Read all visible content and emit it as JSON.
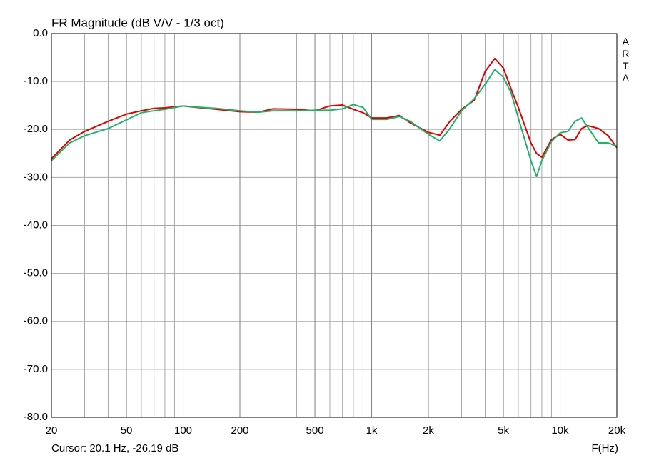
{
  "chart_data": {
    "type": "line",
    "title": "FR Magnitude (dB V/V - 1/3 oct)",
    "side_label": "ARTA",
    "cursor_text": "Cursor: 20.1 Hz, -26.19 dB",
    "x_label": "F(Hz)",
    "xscale": "log",
    "grid": true,
    "xlim": [
      20,
      20000
    ],
    "xticks": [
      20,
      50,
      100,
      200,
      500,
      {
        "value": 1000,
        "label": "1k"
      },
      {
        "value": 2000,
        "label": "2k"
      },
      {
        "value": 5000,
        "label": "5k"
      },
      {
        "value": 10000,
        "label": "10k"
      },
      {
        "value": 20000,
        "label": "20k"
      }
    ],
    "xminorticks": [
      30,
      40,
      60,
      70,
      80,
      90,
      300,
      400,
      600,
      700,
      800,
      900,
      3000,
      4000,
      6000,
      7000,
      8000,
      9000
    ],
    "ylim": [
      -80,
      0
    ],
    "yticks": [
      {
        "value": 0,
        "label": "0.0"
      },
      {
        "value": -10,
        "label": "-10.0"
      },
      {
        "value": -20,
        "label": "-20.0"
      },
      {
        "value": -30,
        "label": "-30.0"
      },
      {
        "value": -40,
        "label": "-40.0"
      },
      {
        "value": -50,
        "label": "-50.0"
      },
      {
        "value": -60,
        "label": "-60.0"
      },
      {
        "value": -70,
        "label": "-70.0"
      },
      {
        "value": -80,
        "label": "-80.0"
      }
    ],
    "x": [
      20,
      25,
      30,
      40,
      50,
      60,
      70,
      80,
      100,
      125,
      150,
      200,
      250,
      300,
      400,
      500,
      600,
      700,
      800,
      900,
      1000,
      1200,
      1400,
      1600,
      2000,
      2300,
      2600,
      3000,
      3500,
      4000,
      4500,
      5000,
      5500,
      6000,
      7000,
      7500,
      8000,
      9000,
      10000,
      11000,
      12000,
      13000,
      14000,
      16000,
      18000,
      20000
    ],
    "series": [
      {
        "color": "#e00000",
        "values": [
          -26.1,
          -22.2,
          -20.4,
          -18.3,
          -16.8,
          -16.1,
          -15.6,
          -15.5,
          -15.1,
          -15.5,
          -15.8,
          -16.3,
          -16.4,
          -15.7,
          -15.8,
          -16.1,
          -15.1,
          -14.9,
          -15.8,
          -16.5,
          -17.6,
          -17.6,
          -17.1,
          -18.6,
          -20.6,
          -21.2,
          -18.3,
          -15.8,
          -13.9,
          -7.9,
          -5.2,
          -7.2,
          -11.6,
          -15.4,
          -22.8,
          -25.0,
          -25.8,
          -22.1,
          -21.0,
          -22.2,
          -22.1,
          -19.8,
          -19.2,
          -19.8,
          -21.3,
          -23.8
        ]
      },
      {
        "color": "#1db36b",
        "values": [
          -26.5,
          -22.8,
          -21.3,
          -19.8,
          -18.0,
          -16.5,
          -16.1,
          -15.8,
          -15.1,
          -15.4,
          -15.6,
          -16.1,
          -16.4,
          -16.1,
          -16.1,
          -16.0,
          -16.0,
          -15.7,
          -14.8,
          -15.4,
          -17.9,
          -17.9,
          -17.3,
          -18.3,
          -21.0,
          -22.4,
          -19.8,
          -16.1,
          -13.6,
          -10.6,
          -7.5,
          -9.1,
          -12.4,
          -17.6,
          -26.5,
          -29.8,
          -26.5,
          -22.5,
          -20.7,
          -20.4,
          -18.3,
          -17.6,
          -19.5,
          -22.8,
          -22.8,
          -23.5
        ]
      }
    ]
  }
}
